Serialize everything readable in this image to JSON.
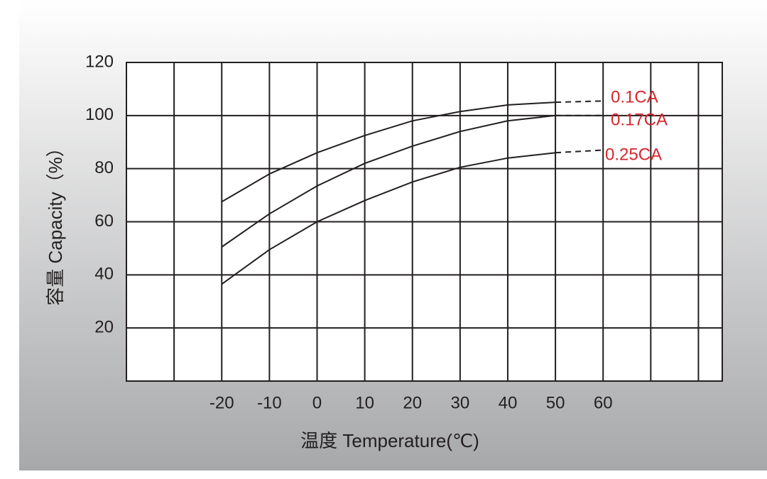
{
  "chart_data": {
    "type": "line",
    "x_label": "温度 Temperature(℃)",
    "y_label": "容量 Capacity（%）",
    "x": [
      -20,
      -10,
      0,
      10,
      20,
      30,
      40,
      50,
      60
    ],
    "series": [
      {
        "name": "0.1CA",
        "color": "#231f20",
        "values": [
          67.5,
          78,
          86,
          92.5,
          98,
          101.5,
          104,
          105,
          105.5
        ]
      },
      {
        "name": "0.17CA",
        "color": "#231f20",
        "values": [
          50.5,
          63,
          73.5,
          82,
          88.5,
          94,
          98,
          100,
          100
        ]
      },
      {
        "name": "0.25CA",
        "color": "#231f20",
        "values": [
          36.5,
          49.5,
          60,
          68,
          75,
          80.5,
          84,
          86,
          87
        ]
      }
    ],
    "dashed_from": 50,
    "label_color": "#d7262f",
    "xlim": [
      -40,
      85
    ],
    "ylim": [
      0,
      120
    ],
    "xticks": [
      -20,
      -10,
      0,
      10,
      20,
      30,
      40,
      50,
      60
    ],
    "xgrid": [
      -40,
      -30,
      -20,
      -10,
      0,
      10,
      20,
      30,
      40,
      50,
      60,
      70,
      80
    ],
    "yticks": [
      20,
      40,
      60,
      80,
      100,
      120
    ],
    "grid": true
  }
}
